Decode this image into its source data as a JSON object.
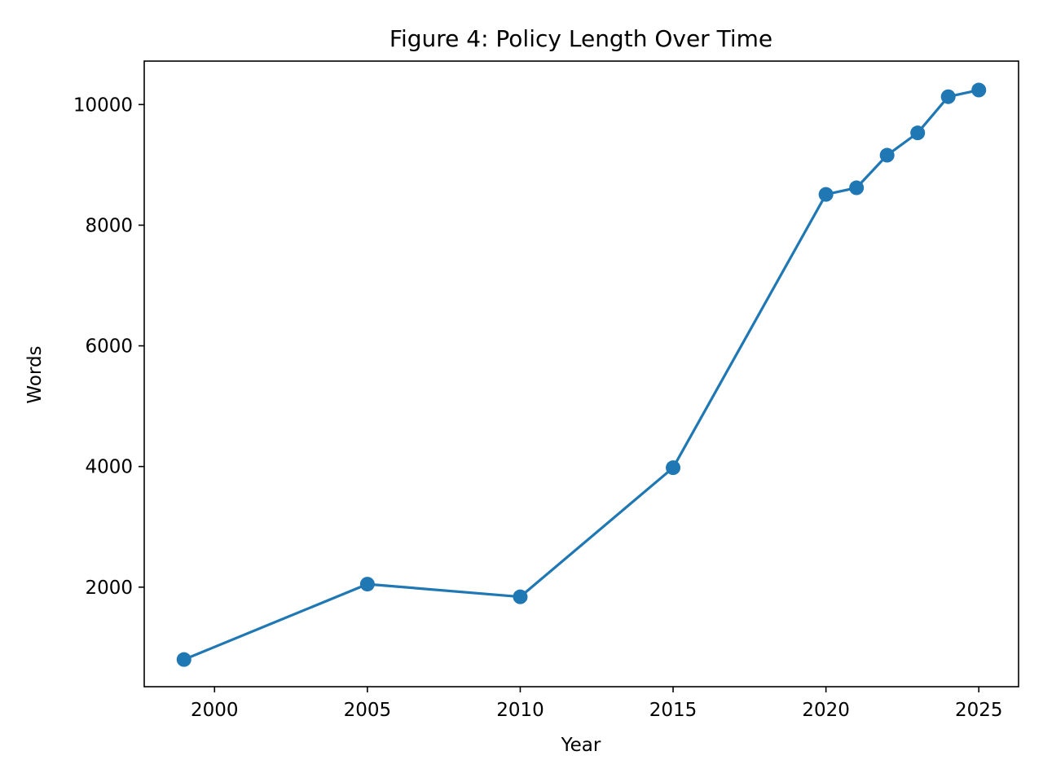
{
  "chart_data": {
    "type": "line",
    "title": "Figure 4: Policy Length Over Time",
    "xlabel": "Year",
    "ylabel": "Words",
    "xlim": [
      1997.7,
      2026.3
    ],
    "ylim": [
      350,
      10720
    ],
    "x_ticks": [
      2000,
      2005,
      2010,
      2015,
      2020,
      2025
    ],
    "y_ticks": [
      2000,
      4000,
      6000,
      8000,
      10000
    ],
    "grid": false,
    "legend": "none",
    "series": [
      {
        "color": "#1f77b4",
        "marker": "circle",
        "points": [
          {
            "x": 1999,
            "y": 800
          },
          {
            "x": 2005,
            "y": 2050
          },
          {
            "x": 2010,
            "y": 1840
          },
          {
            "x": 2015,
            "y": 3980
          },
          {
            "x": 2020,
            "y": 8510
          },
          {
            "x": 2021,
            "y": 8620
          },
          {
            "x": 2022,
            "y": 9160
          },
          {
            "x": 2023,
            "y": 9530
          },
          {
            "x": 2024,
            "y": 10130
          },
          {
            "x": 2025,
            "y": 10240
          }
        ]
      }
    ]
  }
}
